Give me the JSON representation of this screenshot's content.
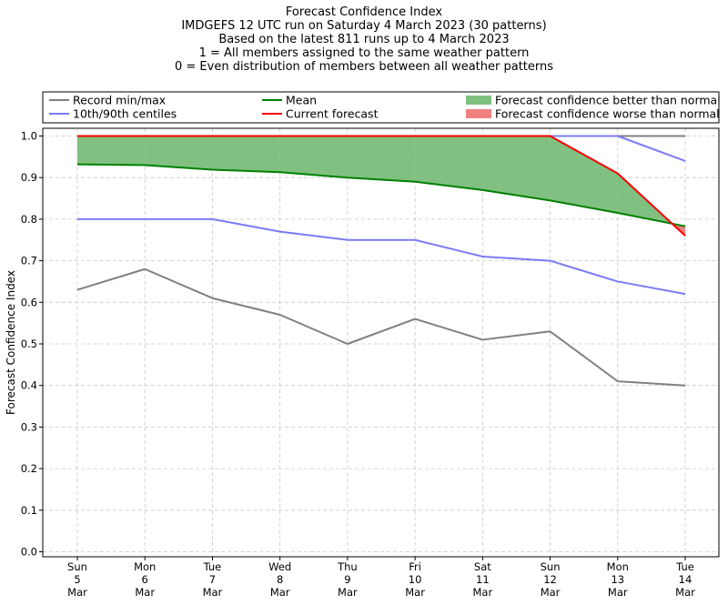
{
  "chart_data": {
    "type": "line",
    "title_lines": [
      "Forecast Confidence Index",
      "IMDGEFS 12 UTC run on Saturday 4 March 2023 (30 patterns)",
      "Based on the latest 811 runs up to 4 March 2023",
      "1 = All members assigned to the same weather pattern",
      "0 = Even distribution of members between all weather patterns"
    ],
    "ylabel": "Forecast Confidence Index",
    "ylim": [
      0,
      1.0
    ],
    "yticks": [
      "0.0",
      "0.1",
      "0.2",
      "0.3",
      "0.4",
      "0.5",
      "0.6",
      "0.7",
      "0.8",
      "0.9",
      "1.0"
    ],
    "categories": [
      [
        "Sun",
        "5",
        "Mar"
      ],
      [
        "Mon",
        "6",
        "Mar"
      ],
      [
        "Tue",
        "7",
        "Mar"
      ],
      [
        "Wed",
        "8",
        "Mar"
      ],
      [
        "Thu",
        "9",
        "Mar"
      ],
      [
        "Fri",
        "10",
        "Mar"
      ],
      [
        "Sat",
        "11",
        "Mar"
      ],
      [
        "Sun",
        "12",
        "Mar"
      ],
      [
        "Mon",
        "13",
        "Mar"
      ],
      [
        "Tue",
        "14",
        "Mar"
      ]
    ],
    "grid": true,
    "legend_placement": "top",
    "legend": [
      {
        "label": "Record min/max",
        "kind": "line",
        "color": "#808080"
      },
      {
        "label": "10th/90th centiles",
        "kind": "line",
        "color": "#7b7bf5"
      },
      {
        "label": "Mean",
        "kind": "line",
        "color": "#008000"
      },
      {
        "label": "Current forecast",
        "kind": "line",
        "color": "#ff0000"
      },
      {
        "label": "Forecast confidence better than normal",
        "kind": "patch",
        "color": "#80c080"
      },
      {
        "label": "Forecast confidence worse than normal",
        "kind": "patch",
        "color": "#f08080"
      }
    ],
    "series": [
      {
        "key": "record_max",
        "color": "#808080",
        "values": [
          1.0,
          1.0,
          1.0,
          1.0,
          1.0,
          1.0,
          1.0,
          1.0,
          1.0,
          1.0
        ]
      },
      {
        "key": "record_min",
        "color": "#808080",
        "values": [
          0.63,
          0.68,
          0.61,
          0.57,
          0.5,
          0.56,
          0.51,
          0.53,
          0.41,
          0.4
        ]
      },
      {
        "key": "p90",
        "color": "#7b7bf5",
        "values": [
          1.0,
          1.0,
          1.0,
          1.0,
          1.0,
          1.0,
          1.0,
          1.0,
          1.0,
          0.94
        ]
      },
      {
        "key": "p10",
        "color": "#7b7bf5",
        "values": [
          0.8,
          0.8,
          0.8,
          0.77,
          0.75,
          0.75,
          0.71,
          0.7,
          0.65,
          0.62
        ]
      },
      {
        "key": "mean",
        "color": "#008000",
        "values": [
          0.932,
          0.93,
          0.919,
          0.913,
          0.9,
          0.89,
          0.87,
          0.845,
          0.815,
          0.783
        ]
      },
      {
        "key": "current",
        "color": "#ff0000",
        "values": [
          1.0,
          1.0,
          1.0,
          1.0,
          1.0,
          1.0,
          1.0,
          1.0,
          0.91,
          0.76
        ]
      }
    ],
    "fill_better_color": "#80c080",
    "fill_worse_color": "#f08080"
  }
}
